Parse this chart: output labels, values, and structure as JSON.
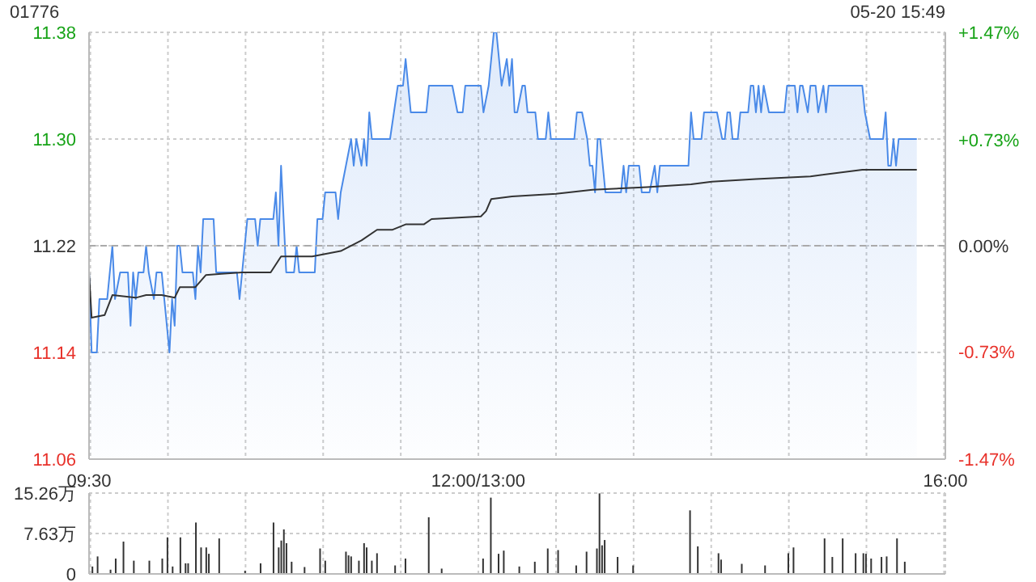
{
  "chart_data": [
    {
      "type": "line",
      "title": "01776",
      "subtitle": "05-20 15:49",
      "grid": true,
      "categories": [
        "09:30",
        null,
        null,
        null,
        null,
        null,
        null,
        null,
        null,
        null,
        null,
        null,
        null,
        null,
        null,
        null,
        null,
        null,
        null,
        null,
        null,
        null,
        null,
        null,
        null,
        null,
        null,
        null,
        null,
        null,
        null,
        null,
        null,
        null,
        null,
        null,
        null,
        null,
        null,
        null,
        null,
        null,
        null,
        null,
        null,
        null,
        null,
        null,
        null,
        null,
        null,
        null,
        null,
        null,
        null,
        null,
        null,
        null,
        null,
        null,
        null,
        null,
        null,
        null,
        null,
        null,
        null,
        null,
        null,
        null,
        null,
        null,
        null,
        null,
        null,
        null,
        null,
        null,
        null,
        null,
        null,
        null,
        null,
        null,
        null,
        null,
        null,
        null,
        null,
        null,
        null,
        null,
        null,
        null,
        null,
        null,
        null,
        null,
        null,
        null,
        null,
        null,
        null,
        null,
        null,
        null,
        null,
        null,
        null,
        null,
        null,
        null,
        null,
        null,
        null,
        null,
        null,
        null,
        null,
        null,
        null,
        null,
        null,
        null,
        null,
        null,
        null,
        null,
        null,
        null,
        null,
        null,
        null,
        null,
        null,
        null,
        null,
        null,
        null,
        null,
        null,
        null,
        null,
        null,
        null,
        null,
        null,
        null,
        null,
        null,
        "12:00/13:00",
        null,
        null,
        null,
        null,
        null,
        null,
        null,
        null,
        null,
        null,
        null,
        null,
        null,
        null,
        null,
        null,
        null,
        null,
        null,
        null,
        null,
        null,
        null,
        null,
        null,
        null,
        null,
        null,
        null,
        null,
        null,
        null,
        null,
        null,
        null,
        null,
        null,
        null,
        null,
        null,
        null,
        null,
        null,
        null,
        null,
        null,
        null,
        null,
        null,
        null,
        null,
        null,
        null,
        null,
        null,
        null,
        null,
        null,
        null,
        null,
        null,
        null,
        null,
        null,
        null,
        null,
        null,
        null,
        null,
        null,
        null,
        null,
        null,
        null,
        null,
        null,
        null,
        null,
        null,
        null,
        null,
        null,
        null,
        null,
        null,
        null,
        null,
        null,
        null,
        null,
        null,
        null,
        null,
        null,
        null,
        null,
        null,
        null,
        null,
        null,
        null,
        null,
        null,
        null,
        null,
        null,
        null,
        null,
        null,
        null,
        null,
        null,
        null,
        null,
        null,
        null,
        null,
        null,
        null,
        null,
        null,
        null,
        null,
        null,
        null,
        null,
        null,
        null,
        null,
        null,
        null,
        null,
        null,
        null,
        null,
        null,
        null,
        null,
        null,
        null,
        null,
        null,
        null,
        null,
        null,
        null,
        null,
        null,
        null,
        null,
        null,
        null,
        null,
        null,
        null,
        null,
        null,
        null,
        null,
        null,
        null,
        null,
        null,
        null,
        null,
        null,
        null,
        null,
        null,
        null,
        null,
        null,
        null,
        null,
        null,
        null,
        null,
        null,
        null,
        "16:00"
      ],
      "ylim": [
        11.06,
        11.38
      ],
      "yticks": [
        {
          "value": 11.06,
          "label": "11.06"
        },
        {
          "value": 11.14,
          "label": "11.14"
        },
        {
          "value": 11.22,
          "label": "11.22"
        },
        {
          "value": 11.3,
          "label": "11.30"
        },
        {
          "value": 11.38,
          "label": "11.38"
        }
      ],
      "y2lim": [
        -1.47,
        1.47
      ],
      "y2ticks": [
        {
          "value": -1.47,
          "label": "-1.47%"
        },
        {
          "value": -0.73,
          "label": "-0.73%"
        },
        {
          "value": 0,
          "label": "0.00%"
        },
        {
          "value": 0.73,
          "label": "+0.73%"
        },
        {
          "value": 1.47,
          "label": "+1.47%"
        }
      ],
      "ref_lines": [
        {
          "axis": "y",
          "value": 11.22,
          "color": "#aaaaaa",
          "line_style": "dashed"
        }
      ],
      "series": [
        {
          "type": "area",
          "color": "#4a8ae8",
          "values": [
            11.2,
            11.14,
            11.14,
            11.14,
            11.18,
            11.18,
            11.18,
            11.18,
            null,
            11.22,
            11.18,
            null,
            11.2,
            11.2,
            11.2,
            11.2,
            11.16,
            11.2,
            11.18,
            11.2,
            11.2,
            11.2,
            11.22,
            11.2,
            null,
            11.18,
            11.2,
            11.2,
            11.2,
            11.18,
            null,
            11.14,
            11.18,
            11.16,
            11.22,
            11.22,
            11.2,
            11.2,
            11.2,
            11.2,
            11.2,
            11.18,
            11.22,
            11.2,
            11.24,
            11.24,
            11.24,
            11.24,
            11.24,
            11.2,
            11.2,
            11.2,
            11.2,
            11.2,
            11.2,
            11.2,
            11.2,
            11.2,
            11.18,
            11.2,
            null,
            11.24,
            11.24,
            11.24,
            11.24,
            11.22,
            11.24,
            11.24,
            11.24,
            11.24,
            11.24,
            11.24,
            11.26,
            11.22,
            11.28,
            11.24,
            11.2,
            11.2,
            11.2,
            11.2,
            11.22,
            11.2,
            11.2,
            11.2,
            11.2,
            11.2,
            11.2,
            11.2,
            11.24,
            null,
            11.24,
            11.26,
            11.26,
            11.26,
            11.26,
            11.26,
            11.24,
            11.26,
            null,
            11.28,
            null,
            11.3,
            11.28,
            11.3,
            null,
            11.28,
            11.3,
            11.28,
            11.32,
            11.3,
            11.3,
            11.3,
            11.3,
            11.3,
            11.3,
            11.3,
            11.3,
            null,
            null,
            11.34,
            11.34,
            11.34,
            11.36,
            null,
            11.32,
            11.32,
            11.32,
            11.32,
            11.32,
            11.32,
            11.32,
            11.34,
            11.34,
            11.34,
            11.34,
            11.34,
            11.34,
            11.34,
            11.34,
            11.34,
            11.34,
            null,
            11.32,
            11.32,
            11.32,
            11.34,
            11.34,
            11.34,
            11.34,
            11.34,
            11.34,
            11.34,
            11.32,
            null,
            11.34,
            null,
            11.38,
            11.38,
            null,
            11.34,
            null,
            11.36,
            11.34,
            11.36,
            11.32,
            11.32,
            null,
            11.34,
            11.34,
            11.32,
            11.32,
            11.32,
            11.32,
            11.3,
            11.3,
            11.3,
            11.3,
            11.32,
            11.3,
            11.3,
            11.3,
            11.3,
            11.3,
            11.3,
            11.3,
            11.3,
            11.3,
            11.3,
            11.32,
            11.32,
            11.32,
            null,
            11.3,
            11.28,
            11.28,
            11.26,
            11.3,
            11.3,
            null,
            11.26,
            11.26,
            11.26,
            11.26,
            11.26,
            11.26,
            11.26,
            11.28,
            11.26,
            11.28,
            11.28,
            11.28,
            11.28,
            11.28,
            11.26,
            11.26,
            11.26,
            11.26,
            null,
            11.28,
            11.26,
            11.28,
            11.28,
            11.28,
            11.28,
            11.28,
            11.28,
            11.28,
            11.28,
            11.28,
            11.28,
            11.28,
            11.28,
            11.32,
            11.3,
            11.3,
            11.3,
            11.3,
            11.32,
            11.32,
            11.32,
            11.32,
            11.32,
            11.32,
            null,
            11.3,
            11.3,
            11.32,
            11.32,
            11.3,
            11.3,
            11.3,
            11.32,
            11.32,
            11.32,
            11.32,
            11.34,
            11.34,
            11.32,
            11.34,
            11.32,
            11.34,
            null,
            11.32,
            11.32,
            11.32,
            11.32,
            11.32,
            11.32,
            11.32,
            11.34,
            11.34,
            11.34,
            11.34,
            11.32,
            11.34,
            11.34,
            null,
            11.32,
            11.34,
            11.34,
            11.34,
            11.32,
            null,
            11.34,
            11.32,
            11.34,
            11.34,
            11.34,
            11.34,
            11.34,
            11.34,
            11.34,
            11.34,
            11.34,
            11.34,
            11.34,
            11.34,
            11.34,
            11.34,
            11.32,
            null,
            11.3,
            11.3,
            11.3,
            11.3,
            11.3,
            11.3,
            11.32,
            11.28,
            11.28,
            11.3,
            11.28,
            11.3,
            11.3,
            11.3,
            11.3,
            11.3,
            11.3,
            11.3,
            11.3,
            null,
            null,
            null,
            null,
            null,
            null,
            null,
            null,
            null,
            null,
            null
          ]
        },
        {
          "color": "#333333",
          "values": [
            11.2,
            11.166,
            null,
            null,
            null,
            null,
            11.168,
            null,
            null,
            11.183,
            null,
            null,
            null,
            null,
            null,
            null,
            null,
            null,
            11.181,
            null,
            null,
            null,
            11.183,
            null,
            null,
            null,
            null,
            null,
            11.183,
            null,
            null,
            null,
            null,
            11.181,
            null,
            11.189,
            null,
            null,
            null,
            null,
            null,
            11.189,
            null,
            null,
            null,
            11.198,
            null,
            null,
            null,
            null,
            null,
            11.199,
            null,
            null,
            null,
            null,
            null,
            null,
            null,
            11.2,
            null,
            null,
            null,
            null,
            null,
            null,
            null,
            null,
            null,
            null,
            11.2,
            null,
            null,
            null,
            11.212,
            null,
            null,
            null,
            null,
            null,
            null,
            null,
            null,
            null,
            null,
            null,
            11.212,
            null,
            null,
            null,
            null,
            null,
            null,
            null,
            null,
            null,
            null,
            11.216,
            null,
            null,
            null,
            null,
            null,
            null,
            null,
            11.224,
            null,
            null,
            null,
            null,
            null,
            11.232,
            null,
            null,
            null,
            null,
            null,
            11.232,
            null,
            null,
            null,
            null,
            11.236,
            null,
            null,
            null,
            null,
            null,
            null,
            11.236,
            null,
            null,
            11.24,
            null,
            null,
            null,
            null,
            null,
            null,
            null,
            null,
            null,
            null,
            null,
            null,
            null,
            null,
            null,
            null,
            null,
            null,
            11.242,
            null,
            11.246,
            null,
            11.255,
            null,
            null,
            null,
            null,
            null,
            null,
            null,
            11.257,
            null,
            null,
            null,
            null,
            null,
            null,
            null,
            null,
            null,
            null,
            null,
            null,
            null,
            null,
            null,
            null,
            11.259,
            null,
            null,
            null,
            null,
            null,
            null,
            null,
            null,
            null,
            null,
            null,
            null,
            null,
            11.262,
            null,
            null,
            null,
            null,
            null,
            null,
            null,
            null,
            null,
            null,
            null,
            null,
            null,
            null,
            null,
            null,
            null,
            null,
            null,
            null,
            11.264,
            null,
            null,
            null,
            null,
            null,
            null,
            null,
            null,
            null,
            null,
            null,
            null,
            null,
            null,
            null,
            null,
            11.266,
            null,
            null,
            null,
            null,
            null,
            null,
            null,
            11.268,
            null,
            null,
            null,
            null,
            null,
            null,
            null,
            null,
            null,
            null,
            null,
            null,
            null,
            null,
            null,
            null,
            11.27,
            null,
            null,
            null,
            null,
            null,
            null,
            null,
            null,
            null,
            null,
            null,
            null,
            null,
            null,
            null,
            null,
            null,
            null,
            null,
            null,
            11.272,
            null,
            null,
            null,
            null,
            null,
            null,
            null,
            null,
            null,
            null,
            null,
            null,
            null,
            null,
            null,
            null,
            null,
            null,
            null,
            11.277,
            null,
            null,
            null,
            null,
            null,
            null,
            null,
            null,
            null,
            null,
            null,
            null,
            null,
            null,
            null,
            null,
            null,
            null,
            null,
            null,
            11.277,
            null,
            null,
            null,
            null,
            null,
            null,
            null,
            null,
            null,
            null,
            null
          ]
        }
      ]
    },
    {
      "type": "bar",
      "grid": true,
      "tick_labels": "y",
      "categories": [
        null,
        null,
        null,
        null,
        null,
        null,
        null,
        null,
        null,
        null,
        null,
        null,
        null,
        null,
        null,
        null,
        null,
        null,
        null,
        null,
        null,
        null,
        null,
        null,
        null,
        null,
        null,
        null,
        null,
        null,
        null,
        null,
        null,
        null,
        null,
        null,
        null,
        null,
        null,
        null,
        null,
        null,
        null,
        null,
        null,
        null,
        null,
        null,
        null,
        null,
        null,
        null,
        null,
        null,
        null,
        null,
        null,
        null,
        null,
        null,
        null,
        null,
        null,
        null,
        null,
        null,
        null,
        null,
        null,
        null,
        null,
        null,
        null,
        null,
        null,
        null,
        null,
        null,
        null,
        null,
        null,
        null,
        null,
        null,
        null,
        null,
        null,
        null,
        null,
        null,
        null,
        null,
        null,
        null,
        null,
        null,
        null,
        null,
        null,
        null,
        null,
        null,
        null,
        null,
        null,
        null,
        null,
        null,
        null,
        null,
        null,
        null,
        null,
        null,
        null,
        null,
        null,
        null,
        null,
        null,
        null,
        null,
        null,
        null,
        null,
        null,
        null,
        null,
        null,
        null,
        null,
        null,
        null,
        null,
        null,
        null,
        null,
        null,
        null,
        null,
        null,
        null,
        null,
        null,
        null,
        null,
        null,
        null,
        null,
        null,
        null,
        null,
        null,
        null,
        null,
        null,
        null,
        null,
        null,
        null,
        null,
        null,
        null,
        null,
        null,
        null,
        null,
        null,
        null,
        null,
        null,
        null,
        null,
        null,
        null,
        null,
        null,
        null,
        null,
        null,
        null,
        null,
        null,
        null,
        null,
        null,
        null,
        null,
        null,
        null,
        null,
        null,
        null,
        null,
        null,
        null,
        null,
        null,
        null,
        null,
        null,
        null,
        null,
        null,
        null,
        null,
        null,
        null,
        null,
        null,
        null,
        null,
        null,
        null,
        null,
        null,
        null,
        null,
        null,
        null,
        null,
        null,
        null,
        null,
        null,
        null,
        null,
        null,
        null,
        null,
        null,
        null,
        null,
        null,
        null,
        null,
        null,
        null,
        null,
        null,
        null,
        null,
        null,
        null,
        null,
        null,
        null,
        null,
        null,
        null,
        null,
        null,
        null,
        null,
        null,
        null,
        null,
        null,
        null,
        null,
        null,
        null,
        null,
        null,
        null,
        null,
        null,
        null,
        null,
        null,
        null,
        null,
        null,
        null,
        null,
        null,
        null,
        null,
        null,
        null,
        null,
        null,
        null,
        null,
        null,
        null,
        null,
        null,
        null,
        null,
        null,
        null,
        null,
        null,
        null,
        null,
        null,
        null,
        null,
        null,
        null,
        null,
        null,
        null,
        null,
        null,
        null,
        null,
        null,
        null,
        null,
        null,
        null,
        null,
        null,
        null,
        null,
        null,
        null,
        null,
        null,
        null,
        null,
        null,
        null,
        null,
        null,
        null,
        null,
        null,
        null
      ],
      "ylim": [
        0,
        15.26
      ],
      "yticks": [
        {
          "value": 0,
          "label": "0"
        },
        {
          "value": 7.63,
          "label": "7.63万"
        },
        {
          "value": 15.26,
          "label": "15.26万"
        }
      ],
      "series": [
        {
          "color": "#333333",
          "values": [
            null,
            1.4,
            null,
            3.3,
            null,
            null,
            null,
            null,
            0.8,
            null,
            2.9,
            null,
            null,
            6.1,
            null,
            null,
            null,
            2.5,
            null,
            null,
            null,
            null,
            null,
            2.5,
            null,
            null,
            null,
            null,
            2.9,
            null,
            6.9,
            null,
            1.4,
            null,
            null,
            6.9,
            null,
            2.0,
            2.0,
            null,
            null,
            9.7,
            null,
            5.0,
            null,
            5.0,
            3.8,
            null,
            null,
            null,
            6.7,
            null,
            null,
            null,
            null,
            null,
            null,
            null,
            null,
            null,
            0.6,
            null,
            null,
            null,
            null,
            null,
            2.0,
            null,
            null,
            null,
            null,
            9.7,
            null,
            5.0,
            6.3,
            8.4,
            5.8,
            null,
            2.3,
            null,
            null,
            null,
            null,
            1.3,
            null,
            null,
            null,
            null,
            null,
            4.8,
            null,
            2.5,
            null,
            null,
            null,
            null,
            null,
            null,
            null,
            4.2,
            3.5,
            3.3,
            null,
            null,
            2.5,
            null,
            5.8,
            5.0,
            null,
            2.5,
            null,
            3.9,
            null,
            null,
            null,
            null,
            null,
            null,
            1.6,
            null,
            null,
            null,
            2.9,
            null,
            null,
            null,
            null,
            null,
            null,
            null,
            null,
            10.7,
            null,
            null,
            null,
            null,
            1.0,
            null,
            null,
            null,
            null,
            null,
            null,
            null,
            null,
            null,
            null,
            null,
            null,
            null,
            null,
            null,
            2.9,
            null,
            null,
            14.4,
            null,
            null,
            3.8,
            null,
            4.4,
            null,
            null,
            null,
            null,
            null,
            1.4,
            null,
            null,
            null,
            null,
            null,
            2.3,
            null,
            null,
            null,
            null,
            4.8,
            null,
            null,
            null,
            4.5,
            null,
            null,
            null,
            null,
            null,
            null,
            1.6,
            null,
            null,
            null,
            4.2,
            null,
            null,
            null,
            4.8,
            15.2,
            5.4,
            6.4,
            null,
            null,
            null,
            null,
            3.2,
            null,
            null,
            null,
            null,
            null,
            1.6,
            null,
            null,
            null,
            null,
            null,
            null,
            null,
            null,
            null,
            null,
            null,
            null,
            null,
            null,
            null,
            null,
            null,
            null,
            null,
            null,
            null,
            12.0,
            null,
            null,
            5.2,
            null,
            null,
            null,
            null,
            null,
            null,
            null,
            3.9,
            2.7,
            null,
            null,
            null,
            null,
            null,
            null,
            null,
            1.9,
            null,
            null,
            null,
            null,
            null,
            null,
            null,
            null,
            1.6,
            null,
            null,
            null,
            null,
            null,
            null,
            null,
            null,
            3.9,
            null,
            5.0,
            null,
            null,
            null,
            null,
            null,
            null,
            null,
            null,
            null,
            null,
            null,
            6.7,
            null,
            null,
            3.2,
            null,
            null,
            null,
            6.7,
            null,
            null,
            null,
            null,
            3.9,
            null,
            null,
            3.9,
            3.8,
            null,
            2.9,
            null,
            null,
            null,
            3.2,
            null,
            3.3,
            null,
            null,
            null,
            6.7,
            null,
            null,
            2.3,
            null,
            null,
            null,
            null,
            null,
            null,
            null,
            null,
            null,
            null,
            null,
            null,
            null,
            null,
            null
          ]
        }
      ]
    }
  ]
}
